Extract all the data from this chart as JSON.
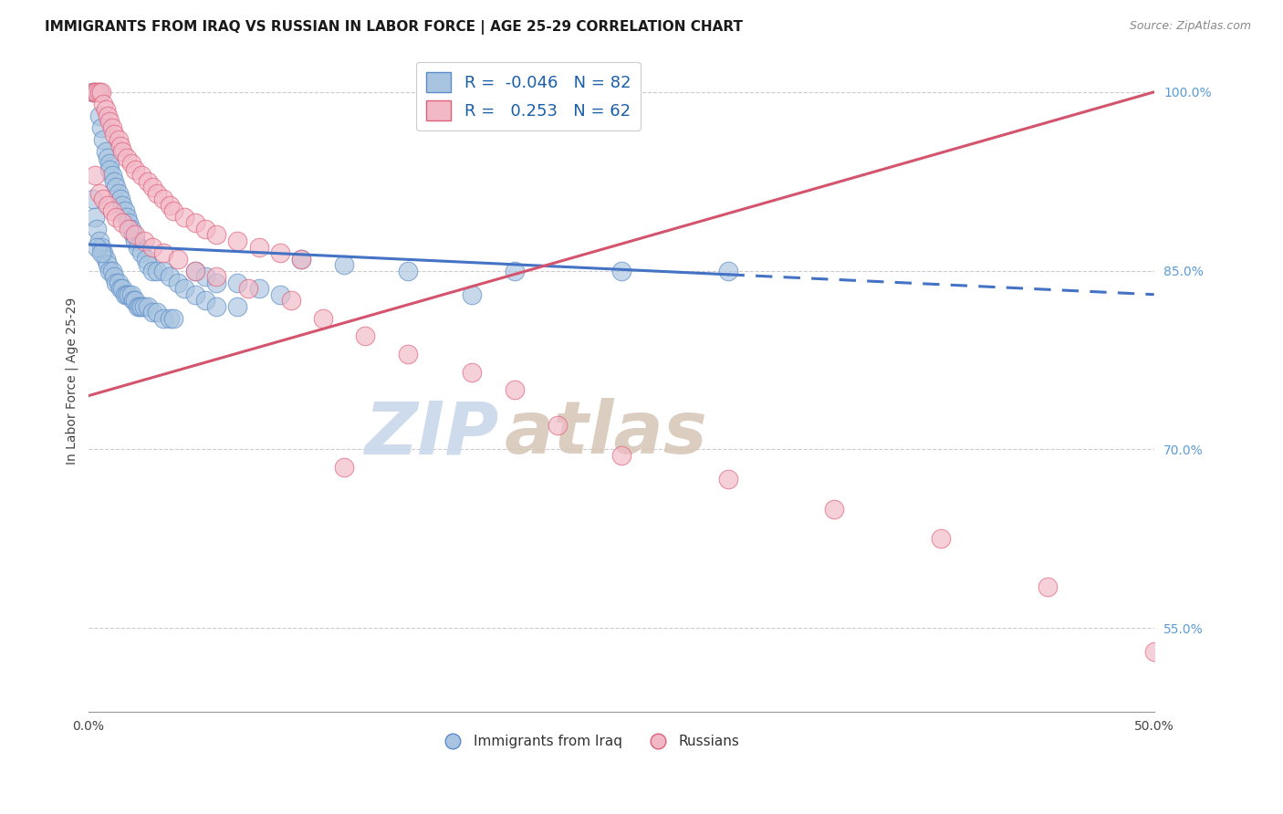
{
  "title": "IMMIGRANTS FROM IRAQ VS RUSSIAN IN LABOR FORCE | AGE 25-29 CORRELATION CHART",
  "source": "Source: ZipAtlas.com",
  "ylabel": "In Labor Force | Age 25-29",
  "xmin": 0.0,
  "xmax": 50.0,
  "ymin": 48.0,
  "ymax": 103.5,
  "iraq_R": -0.046,
  "iraq_N": 82,
  "russia_R": 0.253,
  "russia_N": 62,
  "iraq_color": "#a8c4e0",
  "iraq_edge_color": "#5b8dc8",
  "russia_color": "#f2b8c6",
  "russia_edge_color": "#e0607a",
  "iraq_line_color": "#4472c4",
  "russia_line_color": "#d4546e",
  "watermark_zip_color": "#c8d8ec",
  "watermark_atlas_color": "#d8c8b8",
  "grid_color": "#cccccc",
  "ytick_color": "#5b9bd5",
  "iraq_line_x0": 0.0,
  "iraq_line_y0": 87.2,
  "iraq_line_x1": 50.0,
  "iraq_line_y1": 83.0,
  "iraq_solid_end_x": 30.0,
  "russia_line_x0": 0.0,
  "russia_line_y0": 74.5,
  "russia_line_x1": 50.0,
  "russia_line_y1": 100.0,
  "iraq_pts_x": [
    0.2,
    0.3,
    0.5,
    0.5,
    0.6,
    0.7,
    0.8,
    0.9,
    1.0,
    1.0,
    1.1,
    1.2,
    1.3,
    1.4,
    1.5,
    1.6,
    1.7,
    1.8,
    1.9,
    2.0,
    2.1,
    2.2,
    2.3,
    2.5,
    2.7,
    2.8,
    3.0,
    3.2,
    3.5,
    3.8,
    4.2,
    4.5,
    5.0,
    5.5,
    6.0,
    7.0,
    0.2,
    0.3,
    0.4,
    0.5,
    0.6,
    0.7,
    0.8,
    0.9,
    1.0,
    1.1,
    1.2,
    1.3,
    1.4,
    1.5,
    1.6,
    1.7,
    1.8,
    1.9,
    2.0,
    2.1,
    2.2,
    2.3,
    2.4,
    2.5,
    2.6,
    2.8,
    3.0,
    3.2,
    3.5,
    3.8,
    4.0,
    5.0,
    5.5,
    6.0,
    7.0,
    8.0,
    9.0,
    10.0,
    12.0,
    15.0,
    18.0,
    20.0,
    25.0,
    30.0,
    0.4,
    0.6
  ],
  "iraq_pts_y": [
    100.0,
    100.0,
    100.0,
    98.0,
    97.0,
    96.0,
    95.0,
    94.5,
    94.0,
    93.5,
    93.0,
    92.5,
    92.0,
    91.5,
    91.0,
    90.5,
    90.0,
    89.5,
    89.0,
    88.5,
    88.0,
    87.5,
    87.0,
    86.5,
    86.0,
    85.5,
    85.0,
    85.0,
    85.0,
    84.5,
    84.0,
    83.5,
    83.0,
    82.5,
    82.0,
    82.0,
    91.0,
    89.5,
    88.5,
    87.5,
    87.0,
    86.5,
    86.0,
    85.5,
    85.0,
    85.0,
    84.5,
    84.0,
    84.0,
    83.5,
    83.5,
    83.0,
    83.0,
    83.0,
    83.0,
    82.5,
    82.5,
    82.0,
    82.0,
    82.0,
    82.0,
    82.0,
    81.5,
    81.5,
    81.0,
    81.0,
    81.0,
    85.0,
    84.5,
    84.0,
    84.0,
    83.5,
    83.0,
    86.0,
    85.5,
    85.0,
    83.0,
    85.0,
    85.0,
    85.0,
    87.0,
    86.5
  ],
  "russia_pts_x": [
    0.2,
    0.3,
    0.4,
    0.5,
    0.6,
    0.7,
    0.8,
    0.9,
    1.0,
    1.1,
    1.2,
    1.4,
    1.5,
    1.6,
    1.8,
    2.0,
    2.2,
    2.5,
    2.8,
    3.0,
    3.2,
    3.5,
    3.8,
    4.0,
    4.5,
    5.0,
    5.5,
    6.0,
    7.0,
    8.0,
    9.0,
    10.0,
    0.3,
    0.5,
    0.7,
    0.9,
    1.1,
    1.3,
    1.6,
    1.9,
    2.2,
    2.6,
    3.0,
    3.5,
    4.2,
    5.0,
    6.0,
    7.5,
    9.5,
    11.0,
    13.0,
    15.0,
    18.0,
    20.0,
    22.0,
    25.0,
    30.0,
    35.0,
    40.0,
    45.0,
    50.0,
    12.0
  ],
  "russia_pts_y": [
    100.0,
    100.0,
    100.0,
    100.0,
    100.0,
    99.0,
    98.5,
    98.0,
    97.5,
    97.0,
    96.5,
    96.0,
    95.5,
    95.0,
    94.5,
    94.0,
    93.5,
    93.0,
    92.5,
    92.0,
    91.5,
    91.0,
    90.5,
    90.0,
    89.5,
    89.0,
    88.5,
    88.0,
    87.5,
    87.0,
    86.5,
    86.0,
    93.0,
    91.5,
    91.0,
    90.5,
    90.0,
    89.5,
    89.0,
    88.5,
    88.0,
    87.5,
    87.0,
    86.5,
    86.0,
    85.0,
    84.5,
    83.5,
    82.5,
    81.0,
    79.5,
    78.0,
    76.5,
    75.0,
    72.0,
    69.5,
    67.5,
    65.0,
    62.5,
    58.5,
    53.0,
    68.5
  ]
}
